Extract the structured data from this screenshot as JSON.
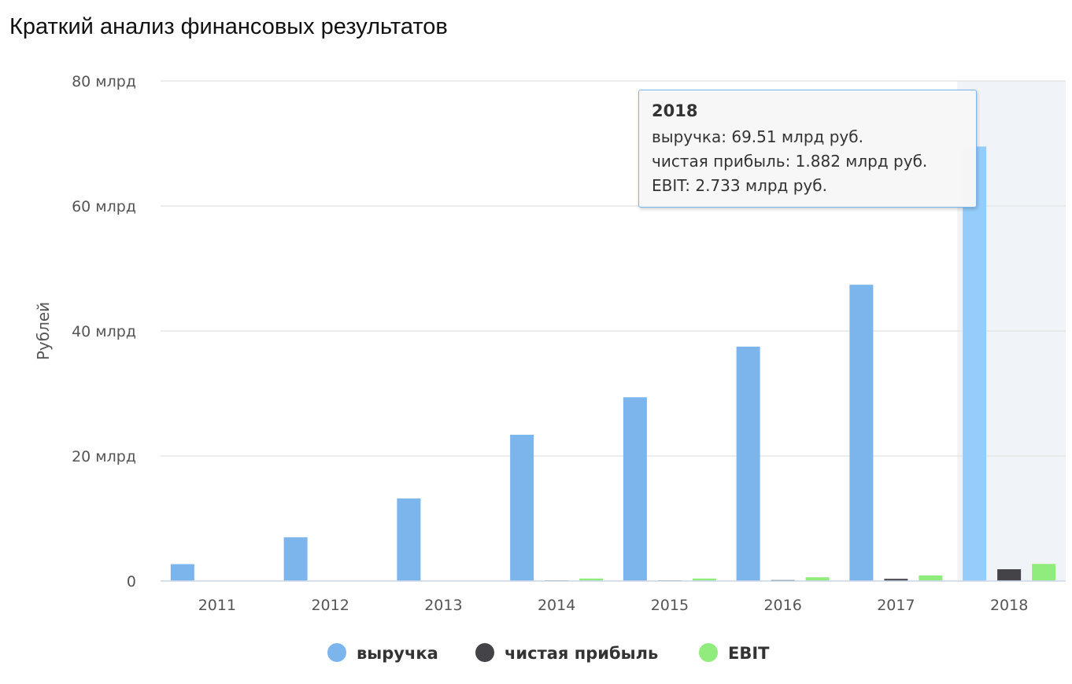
{
  "title": "Краткий анализ финансовых результатов",
  "chart_data": {
    "type": "bar",
    "categories": [
      "2011",
      "2012",
      "2013",
      "2014",
      "2015",
      "2016",
      "2017",
      "2018"
    ],
    "series": [
      {
        "name": "выручка",
        "color": "#7cb5ec",
        "values": [
          2.7,
          7.0,
          13.2,
          23.4,
          29.4,
          37.5,
          47.4,
          69.51
        ]
      },
      {
        "name": "чистая прибыль",
        "color": "#434348",
        "values": [
          0.02,
          0.03,
          0.04,
          0.1,
          0.1,
          0.15,
          0.35,
          1.882
        ]
      },
      {
        "name": "EBIT",
        "color": "#90ed7d",
        "values": [
          0.04,
          0.05,
          0.06,
          0.4,
          0.4,
          0.6,
          0.9,
          2.733
        ]
      }
    ],
    "ylabel": "Рублей",
    "yticks": [
      {
        "value": 0,
        "label": "0"
      },
      {
        "value": 20,
        "label": "20 млрд"
      },
      {
        "value": 40,
        "label": "40 млрд"
      },
      {
        "value": 60,
        "label": "60 млрд"
      },
      {
        "value": 80,
        "label": "80 млрд"
      }
    ],
    "ylim": [
      0,
      80
    ],
    "grid": true,
    "legend_position": "bottom-center",
    "highlighted_category": "2018"
  },
  "tooltip": {
    "title": "2018",
    "lines": [
      "выручка: 69.51 млрд руб.",
      "чистая прибыль: 1.882 млрд руб.",
      "EBIT: 2.733 млрд руб."
    ]
  }
}
